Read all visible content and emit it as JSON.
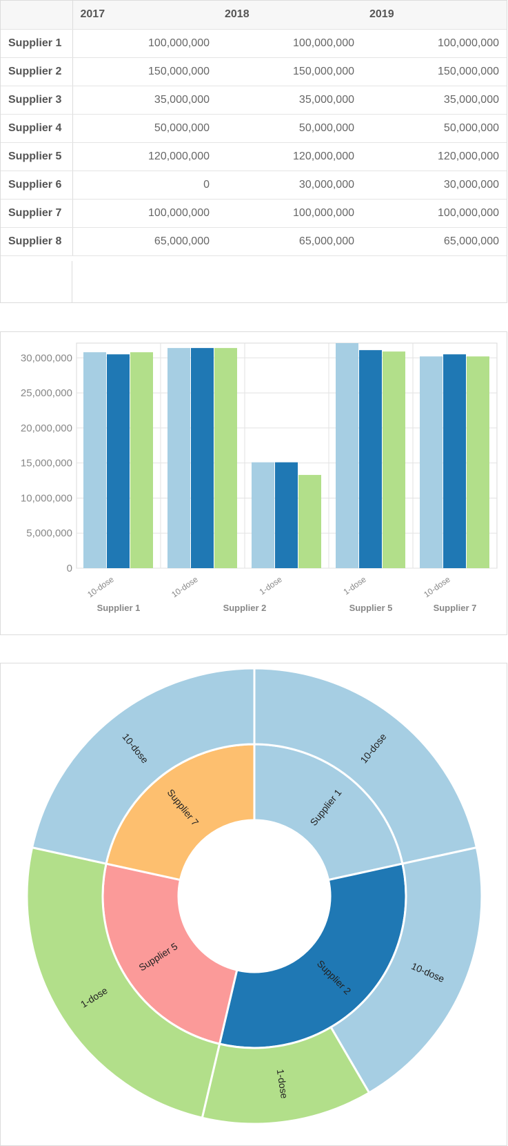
{
  "table": {
    "columns": [
      "2017",
      "2018",
      "2019"
    ],
    "rows": [
      {
        "label": "Supplier 1",
        "values": [
          "100,000,000",
          "100,000,000",
          "100,000,000"
        ]
      },
      {
        "label": "Supplier 2",
        "values": [
          "150,000,000",
          "150,000,000",
          "150,000,000"
        ]
      },
      {
        "label": "Supplier 3",
        "values": [
          "35,000,000",
          "35,000,000",
          "35,000,000"
        ]
      },
      {
        "label": "Supplier 4",
        "values": [
          "50,000,000",
          "50,000,000",
          "50,000,000"
        ]
      },
      {
        "label": "Supplier 5",
        "values": [
          "120,000,000",
          "120,000,000",
          "120,000,000"
        ]
      },
      {
        "label": "Supplier 6",
        "values": [
          "0",
          "30,000,000",
          "30,000,000"
        ]
      },
      {
        "label": "Supplier 7",
        "values": [
          "100,000,000",
          "100,000,000",
          "100,000,000"
        ]
      },
      {
        "label": "Supplier 8",
        "values": [
          "65,000,000",
          "65,000,000",
          "65,000,000"
        ]
      }
    ]
  },
  "chart_data": [
    {
      "type": "bar",
      "categories": [
        {
          "label": "10-dose",
          "group": "Supplier 1"
        },
        {
          "label": "10-dose",
          "group": "Supplier 2"
        },
        {
          "label": "1-dose",
          "group": "Supplier 2"
        },
        {
          "label": "1-dose",
          "group": "Supplier 5"
        },
        {
          "label": "10-dose",
          "group": "Supplier 7"
        }
      ],
      "group_labels": [
        "Supplier 1",
        "Supplier 2",
        "Supplier 5",
        "Supplier 7"
      ],
      "series": [
        {
          "values": [
            30800000,
            31400000,
            15100000,
            32100000,
            30200000
          ],
          "color": "#a6cee3"
        },
        {
          "values": [
            30500000,
            31400000,
            15100000,
            31100000,
            30500000
          ],
          "color": "#1f78b4"
        },
        {
          "values": [
            30800000,
            31400000,
            13300000,
            30900000,
            30200000
          ],
          "color": "#b2df8a"
        }
      ],
      "y_ticks": [
        "0",
        "5,000,000",
        "10,000,000",
        "15,000,000",
        "20,000,000",
        "25,000,000",
        "30,000,000"
      ],
      "ylim": [
        0,
        32100000
      ],
      "grid": true
    },
    {
      "type": "sunburst",
      "inner": [
        {
          "label": "Supplier 1",
          "value": 20.5,
          "color": "#a6cee3"
        },
        {
          "label": "Supplier 2",
          "value": 30.5,
          "color": "#1f78b4"
        },
        {
          "label": "Supplier 5",
          "value": 23.5,
          "color": "#fb9a99"
        },
        {
          "label": "Supplier 7",
          "value": 20.5,
          "color": "#fdbf6f"
        }
      ],
      "outer": [
        {
          "label": "10-dose",
          "parent": "Supplier 1",
          "value": 20.5,
          "color": "#a6cee3"
        },
        {
          "label": "10-dose",
          "parent": "Supplier 2",
          "value": 19.0,
          "color": "#a6cee3"
        },
        {
          "label": "1-dose",
          "parent": "Supplier 2",
          "value": 11.5,
          "color": "#b2df8a"
        },
        {
          "label": "1-dose",
          "parent": "Supplier 5",
          "value": 23.5,
          "color": "#b2df8a"
        },
        {
          "label": "10-dose",
          "parent": "Supplier 7",
          "value": 20.5,
          "color": "#a6cee3"
        }
      ]
    }
  ]
}
